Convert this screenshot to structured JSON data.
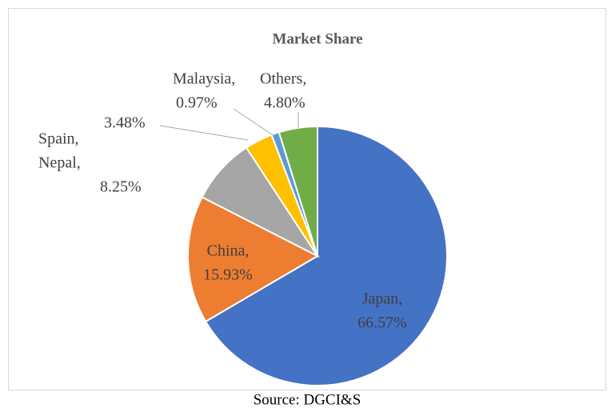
{
  "chart_data": {
    "type": "pie",
    "title": "Market Share",
    "categories": [
      "Japan,",
      "China,",
      "Nepal,",
      "Spain,",
      "Malaysia,",
      "Others,"
    ],
    "values": [
      66.57,
      15.93,
      8.25,
      3.48,
      0.97,
      4.8
    ],
    "value_labels": [
      "66.57%",
      "15.93%",
      "8.25%",
      "3.48%",
      "0.97%",
      "4.80%"
    ],
    "colors": [
      "#4472c4",
      "#ed7d31",
      "#a5a5a5",
      "#ffc000",
      "#5b9bd5",
      "#70ad47"
    ],
    "source": "Source: DGCI&S"
  }
}
